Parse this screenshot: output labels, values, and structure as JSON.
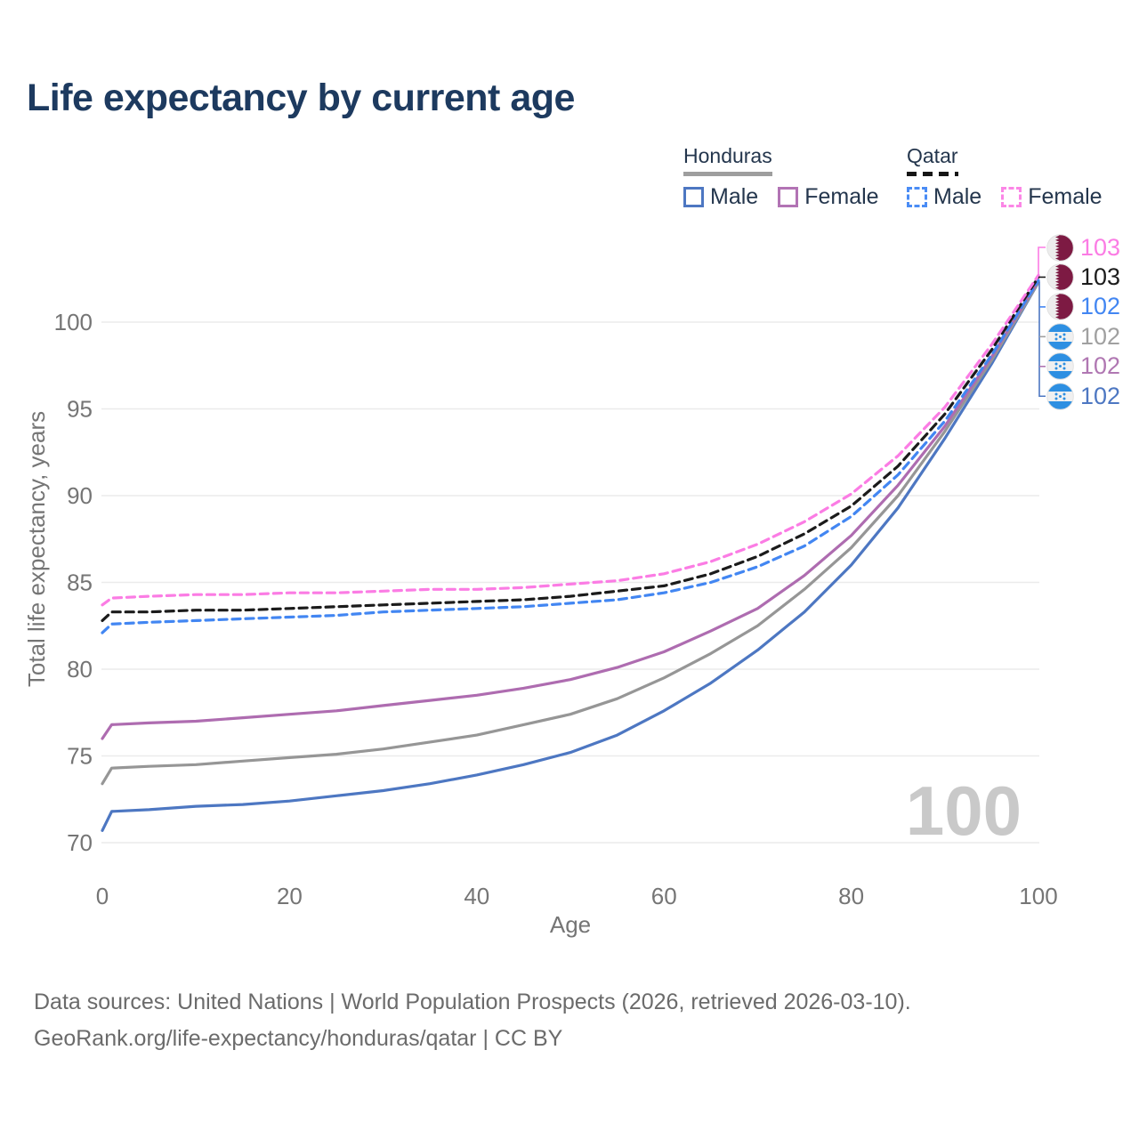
{
  "title": "Life expectancy by current age",
  "legend": {
    "groups": [
      {
        "name": "Honduras",
        "line_style": "solid",
        "line_color": "#9e9e9e",
        "items": [
          {
            "label": "Male",
            "color": "#4d77c2",
            "style": "solid"
          },
          {
            "label": "Female",
            "color": "#b273b4",
            "style": "solid"
          }
        ]
      },
      {
        "name": "Qatar",
        "line_style": "dashed",
        "line_color": "#161616",
        "items": [
          {
            "label": "Male",
            "color": "#4a8cf5",
            "style": "dashed"
          },
          {
            "label": "Female",
            "color": "#fb86e6",
            "style": "dashed"
          }
        ]
      }
    ]
  },
  "chart_data": {
    "type": "line",
    "title": "Life expectancy by current age",
    "xlabel": "Age",
    "ylabel": "Total life expectancy, years",
    "xlim": [
      0,
      100
    ],
    "ylim": [
      70,
      103.5
    ],
    "x_ticks": [
      0,
      20,
      40,
      60,
      80,
      100
    ],
    "y_ticks": [
      70,
      75,
      80,
      85,
      90,
      95,
      100
    ],
    "grid": "horizontal",
    "legend_position": "top-right",
    "watermark": "100",
    "x": [
      0,
      1,
      5,
      10,
      15,
      20,
      25,
      30,
      35,
      40,
      45,
      50,
      55,
      60,
      65,
      70,
      75,
      80,
      85,
      90,
      95,
      100
    ],
    "series": [
      {
        "name": "Honduras Male",
        "country": "Honduras",
        "sex": "male",
        "color": "#4d77c2",
        "dash": false,
        "values": [
          70.7,
          71.8,
          71.9,
          72.1,
          72.2,
          72.4,
          72.7,
          73.0,
          73.4,
          73.9,
          74.5,
          75.2,
          76.2,
          77.6,
          79.2,
          81.1,
          83.3,
          86.0,
          89.3,
          93.3,
          97.6,
          102.3
        ]
      },
      {
        "name": "Honduras Total",
        "country": "Honduras",
        "sex": "both",
        "color": "#969696",
        "dash": false,
        "values": [
          73.4,
          74.3,
          74.4,
          74.5,
          74.7,
          74.9,
          75.1,
          75.4,
          75.8,
          76.2,
          76.8,
          77.4,
          78.3,
          79.5,
          80.9,
          82.5,
          84.6,
          87.0,
          90.0,
          93.7,
          97.8,
          102.3
        ]
      },
      {
        "name": "Honduras Female",
        "country": "Honduras",
        "sex": "female",
        "color": "#ae6cb0",
        "dash": false,
        "values": [
          76.0,
          76.8,
          76.9,
          77.0,
          77.2,
          77.4,
          77.6,
          77.9,
          78.2,
          78.5,
          78.9,
          79.4,
          80.1,
          81.0,
          82.2,
          83.5,
          85.4,
          87.7,
          90.6,
          94.0,
          98.0,
          102.4
        ]
      },
      {
        "name": "Qatar Male",
        "country": "Qatar",
        "sex": "male",
        "color": "#4286f2",
        "dash": true,
        "values": [
          82.1,
          82.6,
          82.7,
          82.8,
          82.9,
          83.0,
          83.1,
          83.3,
          83.4,
          83.5,
          83.6,
          83.8,
          84.0,
          84.4,
          85.0,
          85.9,
          87.1,
          88.8,
          91.2,
          94.3,
          98.1,
          102.4
        ]
      },
      {
        "name": "Qatar Total",
        "country": "Qatar",
        "sex": "both",
        "color": "#1b1b1b",
        "dash": true,
        "values": [
          82.8,
          83.3,
          83.3,
          83.4,
          83.4,
          83.5,
          83.6,
          83.7,
          83.8,
          83.9,
          84.0,
          84.2,
          84.5,
          84.8,
          85.5,
          86.5,
          87.8,
          89.4,
          91.7,
          94.7,
          98.4,
          102.6
        ]
      },
      {
        "name": "Qatar Female",
        "country": "Qatar",
        "sex": "female",
        "color": "#fb7ce4",
        "dash": true,
        "values": [
          83.7,
          84.1,
          84.2,
          84.3,
          84.3,
          84.4,
          84.4,
          84.5,
          84.6,
          84.6,
          84.7,
          84.9,
          85.1,
          85.5,
          86.2,
          87.2,
          88.5,
          90.1,
          92.3,
          95.1,
          98.7,
          102.7
        ]
      }
    ]
  },
  "end_labels": [
    {
      "value": "103",
      "color": "#fb7ce4",
      "flag": "qatar",
      "series": "Qatar Female"
    },
    {
      "value": "103",
      "color": "#1c1c1c",
      "flag": "qatar",
      "series": "Qatar Total"
    },
    {
      "value": "102",
      "color": "#4286f2",
      "flag": "qatar",
      "series": "Qatar Male"
    },
    {
      "value": "102",
      "color": "#a0a0a0",
      "flag": "honduras",
      "series": "Honduras Total"
    },
    {
      "value": "102",
      "color": "#b077b2",
      "flag": "honduras",
      "series": "Honduras Female"
    },
    {
      "value": "102",
      "color": "#4d77c2",
      "flag": "honduras",
      "series": "Honduras Male"
    }
  ],
  "footer": {
    "line1": "Data sources: United Nations | World Population Prospects (2026, retrieved 2026-03-10).",
    "line2": "GeoRank.org/life-expectancy/honduras/qatar | CC BY"
  }
}
